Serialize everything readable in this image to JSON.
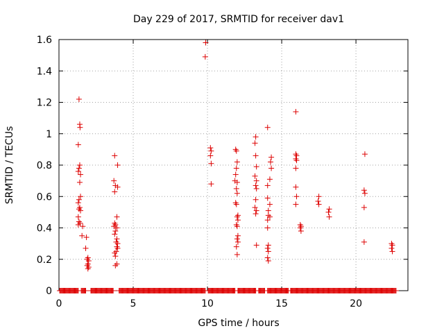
{
  "chart_data": {
    "type": "scatter",
    "title": "Day 229 of 2017, SRMTID for receiver dav1",
    "xlabel": "GPS time / hours",
    "ylabel": "SRMTID / TECUs",
    "xlim": [
      0,
      23.5
    ],
    "ylim": [
      0,
      1.6
    ],
    "xticks": [
      0,
      5,
      10,
      15,
      20
    ],
    "xtick_labels": [
      "0",
      "5",
      "10",
      "15",
      "20"
    ],
    "yticks": [
      0,
      0.2,
      0.4,
      0.6,
      0.8,
      1,
      1.2,
      1.4,
      1.6
    ],
    "ytick_labels": [
      "0",
      "0.2",
      "0.4",
      "0.6",
      "0.8",
      "1",
      "1.2",
      "1.4",
      "1.6"
    ],
    "grid": true,
    "marker": "plus",
    "color": "#dd0000",
    "baseline_segments": [
      [
        0.05,
        1.33
      ],
      [
        1.5,
        1.82
      ],
      [
        2.15,
        3.65
      ],
      [
        4.05,
        9.85
      ],
      [
        10.05,
        11.85
      ],
      [
        12.05,
        13.25
      ],
      [
        13.45,
        13.85
      ],
      [
        14.05,
        15.45
      ],
      [
        15.6,
        22.7
      ]
    ],
    "points": [
      [
        1.35,
        1.22
      ],
      [
        1.4,
        1.06
      ],
      [
        1.42,
        1.04
      ],
      [
        1.3,
        0.93
      ],
      [
        1.4,
        0.8
      ],
      [
        1.35,
        0.78
      ],
      [
        1.3,
        0.76
      ],
      [
        1.45,
        0.74
      ],
      [
        1.4,
        0.69
      ],
      [
        1.45,
        0.6
      ],
      [
        1.35,
        0.58
      ],
      [
        1.3,
        0.56
      ],
      [
        1.4,
        0.53
      ],
      [
        1.35,
        0.52
      ],
      [
        1.45,
        0.51
      ],
      [
        1.3,
        0.47
      ],
      [
        1.35,
        0.44
      ],
      [
        1.42,
        0.43
      ],
      [
        1.3,
        0.42
      ],
      [
        1.6,
        0.41
      ],
      [
        1.55,
        0.35
      ],
      [
        1.85,
        0.34
      ],
      [
        1.8,
        0.27
      ],
      [
        1.95,
        0.21
      ],
      [
        1.9,
        0.2
      ],
      [
        2.0,
        0.19
      ],
      [
        1.95,
        0.17
      ],
      [
        1.9,
        0.16
      ],
      [
        2.0,
        0.15
      ],
      [
        1.95,
        0.14
      ],
      [
        3.75,
        0.86
      ],
      [
        3.7,
        0.7
      ],
      [
        3.95,
        0.8
      ],
      [
        3.8,
        0.67
      ],
      [
        3.95,
        0.66
      ],
      [
        3.75,
        0.63
      ],
      [
        3.9,
        0.47
      ],
      [
        3.75,
        0.43
      ],
      [
        3.8,
        0.42
      ],
      [
        3.7,
        0.41
      ],
      [
        3.9,
        0.4
      ],
      [
        3.8,
        0.38
      ],
      [
        3.75,
        0.36
      ],
      [
        3.9,
        0.33
      ],
      [
        3.85,
        0.31
      ],
      [
        3.95,
        0.3
      ],
      [
        3.9,
        0.28
      ],
      [
        3.95,
        0.27
      ],
      [
        3.85,
        0.25
      ],
      [
        3.75,
        0.24
      ],
      [
        3.8,
        0.22
      ],
      [
        3.9,
        0.17
      ],
      [
        3.8,
        0.16
      ],
      [
        9.88,
        1.58
      ],
      [
        9.85,
        1.49
      ],
      [
        10.2,
        0.91
      ],
      [
        10.25,
        0.89
      ],
      [
        10.2,
        0.86
      ],
      [
        10.25,
        0.81
      ],
      [
        10.25,
        0.68
      ],
      [
        11.9,
        0.9
      ],
      [
        11.95,
        0.89
      ],
      [
        12.0,
        0.82
      ],
      [
        11.95,
        0.78
      ],
      [
        11.9,
        0.74
      ],
      [
        11.85,
        0.7
      ],
      [
        12.0,
        0.69
      ],
      [
        11.95,
        0.65
      ],
      [
        12.0,
        0.62
      ],
      [
        11.9,
        0.56
      ],
      [
        11.95,
        0.55
      ],
      [
        12.05,
        0.48
      ],
      [
        12.0,
        0.47
      ],
      [
        12.05,
        0.45
      ],
      [
        11.95,
        0.42
      ],
      [
        12.0,
        0.41
      ],
      [
        12.05,
        0.35
      ],
      [
        12.0,
        0.33
      ],
      [
        12.05,
        0.31
      ],
      [
        11.95,
        0.28
      ],
      [
        12.0,
        0.23
      ],
      [
        13.25,
        0.98
      ],
      [
        13.2,
        0.94
      ],
      [
        13.25,
        0.86
      ],
      [
        13.3,
        0.79
      ],
      [
        13.2,
        0.73
      ],
      [
        13.3,
        0.7
      ],
      [
        13.25,
        0.67
      ],
      [
        13.3,
        0.65
      ],
      [
        13.25,
        0.58
      ],
      [
        13.2,
        0.53
      ],
      [
        13.3,
        0.51
      ],
      [
        13.25,
        0.49
      ],
      [
        13.3,
        0.29
      ],
      [
        14.05,
        1.04
      ],
      [
        14.3,
        0.85
      ],
      [
        14.25,
        0.82
      ],
      [
        14.3,
        0.78
      ],
      [
        14.2,
        0.71
      ],
      [
        14.05,
        0.67
      ],
      [
        14.05,
        0.59
      ],
      [
        14.2,
        0.55
      ],
      [
        14.1,
        0.51
      ],
      [
        14.1,
        0.48
      ],
      [
        14.2,
        0.47
      ],
      [
        14.05,
        0.45
      ],
      [
        14.05,
        0.4
      ],
      [
        14.1,
        0.29
      ],
      [
        14.05,
        0.27
      ],
      [
        14.1,
        0.25
      ],
      [
        14.05,
        0.21
      ],
      [
        14.1,
        0.19
      ],
      [
        15.95,
        1.14
      ],
      [
        15.95,
        0.87
      ],
      [
        16.0,
        0.86
      ],
      [
        15.95,
        0.84
      ],
      [
        16.0,
        0.83
      ],
      [
        15.95,
        0.78
      ],
      [
        15.95,
        0.66
      ],
      [
        16.0,
        0.6
      ],
      [
        15.95,
        0.55
      ],
      [
        16.25,
        0.42
      ],
      [
        16.3,
        0.41
      ],
      [
        16.25,
        0.4
      ],
      [
        16.3,
        0.38
      ],
      [
        17.5,
        0.6
      ],
      [
        17.45,
        0.57
      ],
      [
        17.5,
        0.55
      ],
      [
        18.2,
        0.52
      ],
      [
        18.15,
        0.5
      ],
      [
        18.2,
        0.47
      ],
      [
        20.6,
        0.87
      ],
      [
        20.55,
        0.64
      ],
      [
        20.6,
        0.62
      ],
      [
        20.55,
        0.53
      ],
      [
        20.55,
        0.31
      ],
      [
        22.4,
        0.3
      ],
      [
        22.45,
        0.29
      ],
      [
        22.4,
        0.27
      ],
      [
        22.45,
        0.25
      ]
    ]
  }
}
